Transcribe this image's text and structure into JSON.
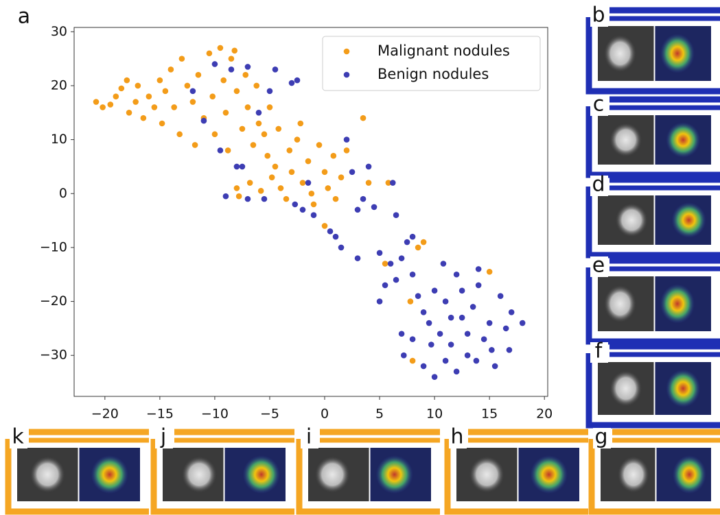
{
  "chart_data": {
    "type": "scatter",
    "panel_label": "a",
    "xlim": [
      -22.8,
      20.3
    ],
    "ylim": [
      -37.6,
      30.8
    ],
    "xticks": [
      {
        "value": -20,
        "label": "−20"
      },
      {
        "value": -15,
        "label": "−15"
      },
      {
        "value": -10,
        "label": "−10"
      },
      {
        "value": -5,
        "label": "−5"
      },
      0,
      5,
      10,
      15,
      20
    ],
    "yticks": [
      {
        "value": -30,
        "label": "−30"
      },
      {
        "value": -20,
        "label": "−20"
      },
      {
        "value": -10,
        "label": "−10"
      },
      0,
      10,
      20,
      30
    ],
    "legend": "upper right",
    "series": [
      {
        "name": "Malignant nodules",
        "color": "#f39c19",
        "x": [
          -20.8,
          -20.2,
          -19.5,
          -19,
          -18.5,
          -18,
          -17.8,
          -17.2,
          -17,
          -16.5,
          -16,
          -15.5,
          -15,
          -14.8,
          -14.5,
          -14,
          -13.7,
          -13.2,
          -13,
          -12.5,
          -12,
          -11.8,
          -11.5,
          -11,
          -10.5,
          -10.2,
          -10,
          -9.5,
          -9.2,
          -9,
          -8.8,
          -8.5,
          -8.2,
          -8,
          -7.5,
          -7.2,
          -7,
          -6.5,
          -6.2,
          -6,
          -5.5,
          -5.2,
          -5,
          -4.8,
          -4.5,
          -4.2,
          -4,
          -3.5,
          -3.2,
          -3,
          -2.5,
          -2.2,
          -2,
          -1.5,
          -1.2,
          -1,
          -0.5,
          0,
          0.3,
          0.8,
          1,
          1.5,
          2,
          -7.8,
          -6.8,
          -5.8,
          3.5,
          4,
          5.5,
          8,
          7.8,
          8.5,
          9,
          15,
          0,
          -8,
          5.8
        ],
        "values": [
          17,
          16,
          16.5,
          18,
          19.5,
          21,
          15,
          17,
          20,
          14,
          18,
          16,
          21,
          13,
          19,
          23,
          16,
          11,
          25,
          20,
          17,
          9,
          22,
          14,
          26,
          18,
          11,
          27,
          21,
          15,
          8,
          25,
          26.5,
          19,
          12,
          22,
          16,
          9,
          20,
          13,
          11,
          7,
          16,
          3,
          5,
          12,
          1,
          -1,
          8,
          4,
          10,
          13,
          2,
          6,
          0,
          -2,
          9,
          4,
          1,
          7,
          -1,
          3,
          8,
          -0.5,
          2,
          0.5,
          14,
          2,
          -13,
          -31,
          -20,
          -10,
          -9,
          -14.5,
          -6,
          1,
          2
        ]
      },
      {
        "name": "Benign nodules",
        "color": "#3d3db3",
        "x": [
          -10,
          -8.5,
          -7,
          -6,
          -5,
          -3,
          -2.5,
          -4.5,
          -12,
          -11,
          -9.5,
          -8,
          -7,
          -2,
          -1,
          0.5,
          1,
          2,
          2.5,
          3,
          3.5,
          4,
          5,
          5.5,
          5,
          6,
          6.5,
          7,
          7.5,
          8,
          8.5,
          9,
          9.5,
          10,
          10.5,
          11,
          11.5,
          12,
          12.5,
          13,
          13.5,
          14,
          14.5,
          15,
          15.5,
          16,
          16.5,
          17,
          18,
          12,
          10,
          9,
          8,
          7,
          7.2,
          11,
          13,
          14,
          12.5,
          11.5,
          9.7,
          10.8,
          13.8,
          15.2,
          16.8,
          6.5,
          8,
          -5.5,
          -2.7,
          -9,
          -1.5,
          -7.5,
          4.5,
          6.2,
          3,
          1.5
        ],
        "values": [
          24,
          23,
          23.5,
          15,
          19,
          20.5,
          21,
          23,
          19,
          13.5,
          8,
          5,
          -1,
          -3,
          -4,
          -7,
          -8,
          10,
          4,
          -3,
          -1,
          5,
          -11,
          -17,
          -20,
          -13,
          -16,
          -12,
          -9,
          -15,
          -19,
          -22,
          -24,
          -18,
          -26,
          -20,
          -28,
          -15,
          -23,
          -30,
          -21,
          -17,
          -27,
          -24,
          -32,
          -19,
          -25,
          -22,
          -24,
          -33,
          -34,
          -32,
          -27,
          -26,
          -30,
          -31,
          -26,
          -14,
          -18,
          -23,
          -28,
          -13,
          -31,
          -29,
          -29,
          -4,
          -8,
          -1,
          -2,
          -0.5,
          2,
          5,
          -2.5,
          2,
          -12,
          -10
        ]
      }
    ]
  },
  "side_panels": [
    "b",
    "c",
    "d",
    "e",
    "f"
  ],
  "bottom_panels": [
    "k",
    "j",
    "i",
    "h",
    "g"
  ]
}
